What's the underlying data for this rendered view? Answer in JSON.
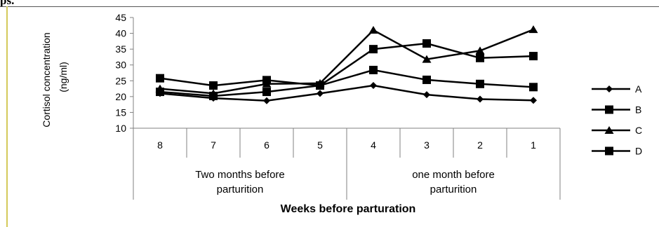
{
  "page": {
    "top_fragment": "ps."
  },
  "chart_data": {
    "type": "line",
    "ylabel_line1": "Cortisol concentration",
    "ylabel_line2": "(ng/ml)",
    "xlabel": "Weeks  before parturation",
    "ylim": [
      10,
      45
    ],
    "yticks": [
      "10",
      "15",
      "20",
      "25",
      "30",
      "35",
      "40",
      "45"
    ],
    "categories": [
      "8",
      "7",
      "6",
      "5",
      "4",
      "3",
      "2",
      "1"
    ],
    "groups": [
      {
        "line1": "Two months before",
        "line2": "parturition"
      },
      {
        "line1": "one  month before",
        "line2": "parturition"
      }
    ],
    "series": [
      {
        "name": "A",
        "marker": "diamond",
        "values": [
          21.0,
          19.5,
          18.7,
          21.0,
          23.5,
          20.6,
          19.2,
          18.8
        ]
      },
      {
        "name": "B",
        "marker": "square",
        "values": [
          25.8,
          23.5,
          25.2,
          23.5,
          35.0,
          36.8,
          32.2,
          32.8
        ]
      },
      {
        "name": "C",
        "marker": "triangle",
        "values": [
          22.5,
          21.0,
          24.0,
          24.2,
          41.0,
          31.8,
          34.5,
          41.2
        ]
      },
      {
        "name": "D",
        "marker": "square",
        "values": [
          21.5,
          20.2,
          21.5,
          23.5,
          28.4,
          25.3,
          24.0,
          23.0
        ]
      }
    ],
    "colors": {
      "line": "#000000",
      "axis": "#808080"
    },
    "legend_position": "right",
    "grid": false
  }
}
